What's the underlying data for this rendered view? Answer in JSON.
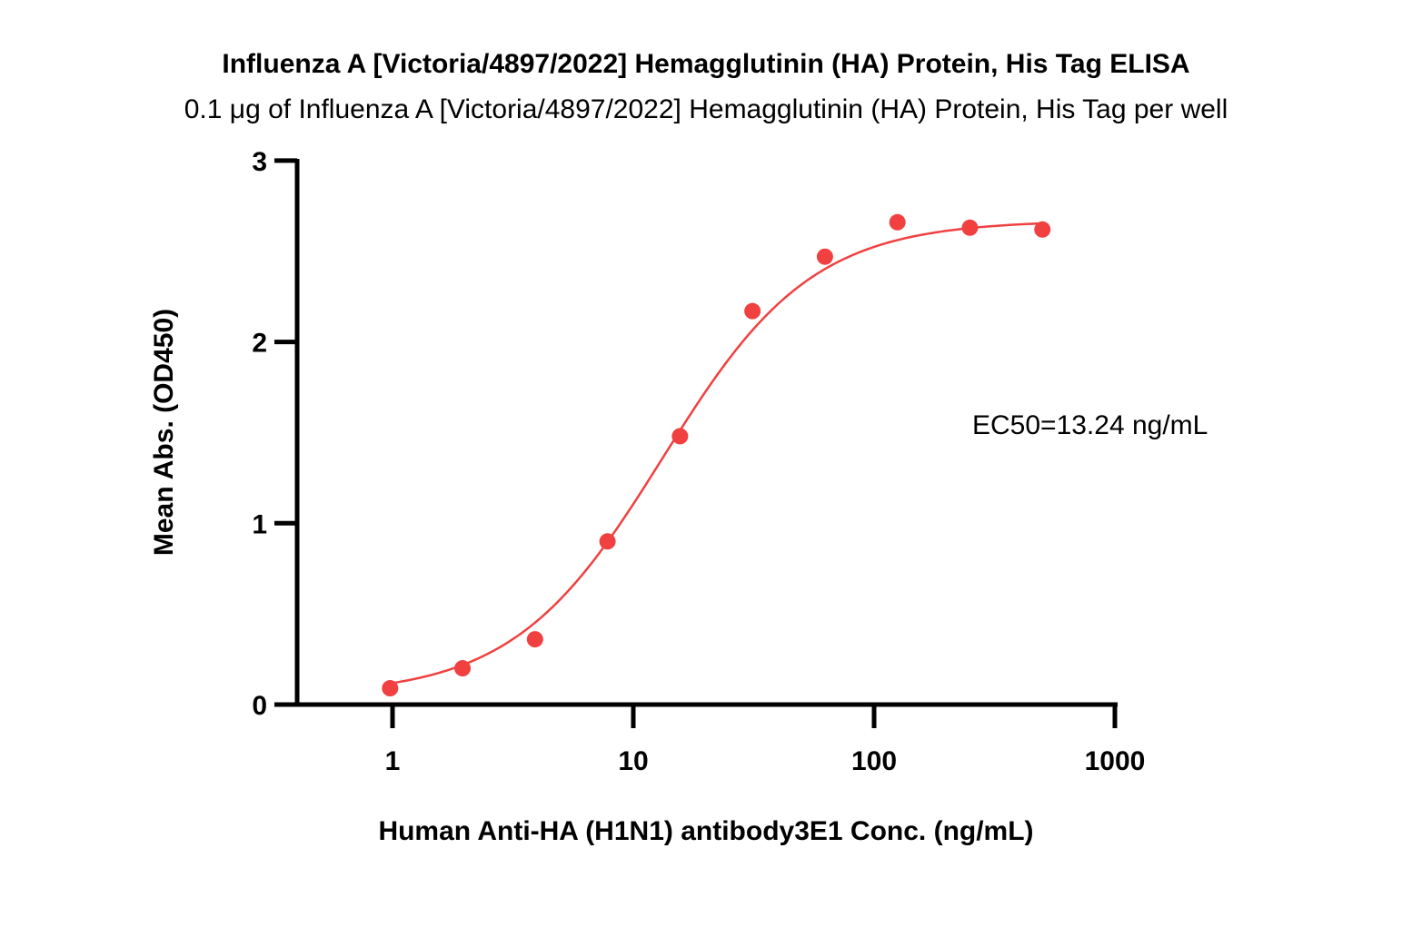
{
  "chart_data": {
    "type": "scatter",
    "title": "Influenza A [Victoria/4897/2022] Hemagglutinin (HA) Protein, His Tag ELISA",
    "subtitle": "0.1 μg of Influenza A [Victoria/4897/2022] Hemagglutinin (HA) Protein, His Tag per well",
    "xlabel": "Human Anti-HA (H1N1) antibody3E1 Conc. (ng/mL)",
    "ylabel": "Mean Abs. (OD450)",
    "x_scale": "log",
    "xlim": [
      0.67,
      1000
    ],
    "ylim": [
      0,
      3
    ],
    "x_ticks": [
      1,
      10,
      100,
      1000
    ],
    "x_tick_labels": [
      "1",
      "10",
      "100",
      "1000"
    ],
    "y_ticks": [
      0,
      1,
      2,
      3
    ],
    "y_tick_labels": [
      "0",
      "1",
      "2",
      "3"
    ],
    "grid": false,
    "series": [
      {
        "color": "#f04040",
        "x": [
          0.977,
          1.953,
          3.906,
          7.813,
          15.625,
          31.25,
          62.5,
          125,
          250,
          500
        ],
        "y": [
          0.09,
          0.2,
          0.36,
          0.9,
          1.48,
          2.17,
          2.47,
          2.66,
          2.63,
          2.62
        ]
      }
    ],
    "fit": {
      "model": "4PL",
      "bottom": 0.05,
      "top": 2.67,
      "ec50": 13.24,
      "hill": 1.4
    },
    "annotations": [
      {
        "text": "EC50=13.24 ng/mL"
      }
    ]
  }
}
